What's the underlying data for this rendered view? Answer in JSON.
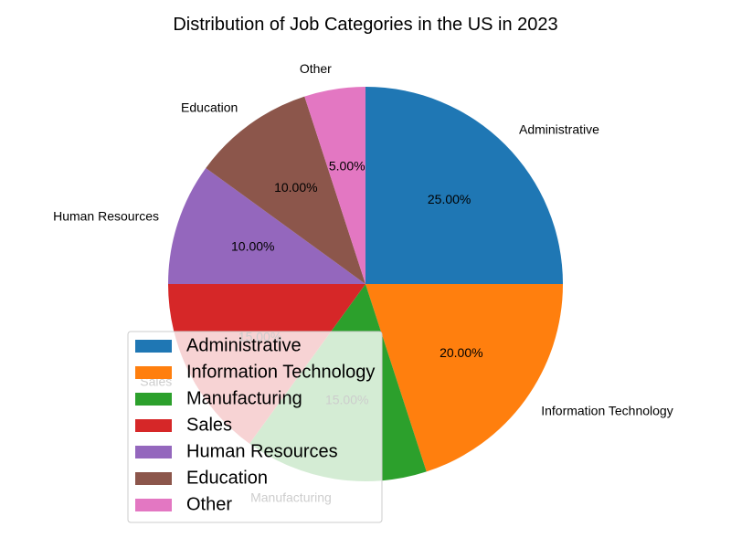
{
  "chart_data": {
    "type": "pie",
    "title": "Distribution of Job Categories in the US in 2023",
    "categories": [
      "Administrative",
      "Information Technology",
      "Manufacturing",
      "Sales",
      "Human Resources",
      "Education",
      "Other"
    ],
    "values": [
      25,
      20,
      15,
      15,
      10,
      10,
      5
    ],
    "percent_labels": [
      "25.00%",
      "20.00%",
      "15.00%",
      "15.00%",
      "10.00%",
      "10.00%",
      "5.00%"
    ],
    "colors": [
      "#1f77b4",
      "#ff7f0e",
      "#2ca02c",
      "#d62728",
      "#9467bd",
      "#8c564b",
      "#e377c2"
    ],
    "start_angle_deg": 90,
    "direction": "clockwise",
    "legend": {
      "position": "lower-left",
      "entries": [
        "Administrative",
        "Information Technology",
        "Manufacturing",
        "Sales",
        "Human Resources",
        "Education",
        "Other"
      ]
    }
  }
}
